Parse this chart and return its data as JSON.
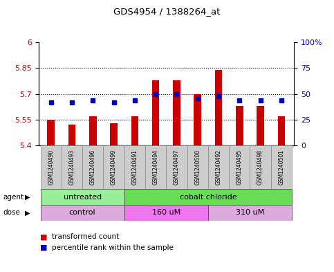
{
  "title": "GDS4954 / 1388264_at",
  "samples": [
    "GSM1240490",
    "GSM1240493",
    "GSM1240496",
    "GSM1240499",
    "GSM1240491",
    "GSM1240494",
    "GSM1240497",
    "GSM1240500",
    "GSM1240492",
    "GSM1240495",
    "GSM1240498",
    "GSM1240501"
  ],
  "transformed_counts": [
    5.55,
    5.52,
    5.57,
    5.53,
    5.57,
    5.78,
    5.78,
    5.7,
    5.84,
    5.63,
    5.63,
    5.57
  ],
  "percentile_ranks": [
    42,
    42,
    44,
    42,
    44,
    50,
    50,
    46,
    48,
    44,
    44,
    44
  ],
  "y_min": 5.4,
  "y_max": 6.0,
  "y_ticks": [
    5.4,
    5.55,
    5.7,
    5.85,
    6.0
  ],
  "y_tick_labels": [
    "5.4",
    "5.55",
    "5.7",
    "5.85",
    "6"
  ],
  "right_y_ticks": [
    0,
    25,
    50,
    75,
    100
  ],
  "right_y_tick_labels": [
    "0",
    "25",
    "50",
    "75",
    "100%"
  ],
  "dotted_lines": [
    5.55,
    5.7,
    5.85
  ],
  "agent_groups": [
    {
      "label": "untreated",
      "start": 0,
      "end": 4,
      "color": "#99EE99"
    },
    {
      "label": "cobalt chloride",
      "start": 4,
      "end": 12,
      "color": "#66DD55"
    }
  ],
  "dose_groups": [
    {
      "label": "control",
      "start": 0,
      "end": 4,
      "color": "#DDAADD"
    },
    {
      "label": "160 uM",
      "start": 4,
      "end": 8,
      "color": "#EE77EE"
    },
    {
      "label": "310 uM",
      "start": 8,
      "end": 12,
      "color": "#DDAADD"
    }
  ],
  "bar_color": "#CC0000",
  "dot_color": "#0000BB",
  "bar_width": 0.35,
  "legend_items": [
    {
      "label": "transformed count",
      "color": "#CC0000"
    },
    {
      "label": "percentile rank within the sample",
      "color": "#0000BB"
    }
  ],
  "tick_label_color_left": "#CC0000",
  "tick_label_color_right": "#0000BB",
  "background_color": "#ffffff"
}
